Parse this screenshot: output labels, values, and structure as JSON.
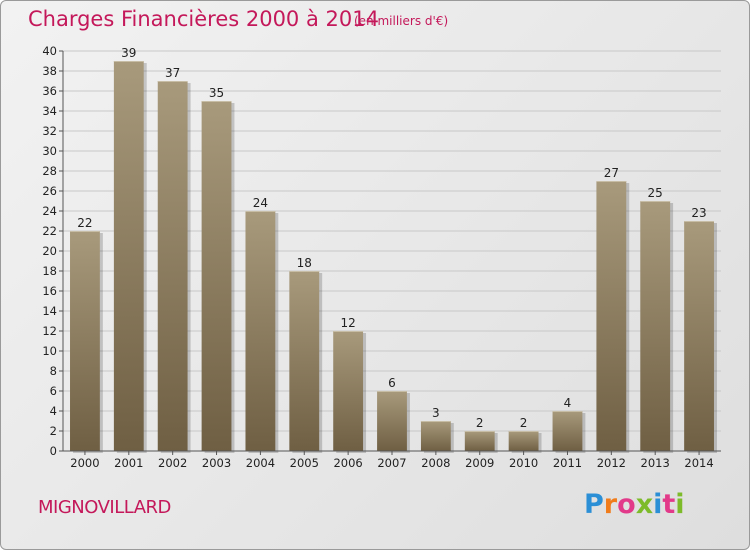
{
  "header": {
    "title": "Charges Financières 2000 à 2014",
    "subtitle": "(en milliers d'€)"
  },
  "footer": {
    "commune": "MIGNOVILLARD",
    "logo_text": "Proxiti",
    "logo_colors": [
      "#2b8fd6",
      "#f07c1b",
      "#e23a8a",
      "#7dbb2a",
      "#2b8fd6",
      "#e23a8a",
      "#7dbb2a"
    ]
  },
  "colors": {
    "bar_top": "#a89a7c",
    "bar_bottom": "#6f5f43",
    "grid": "#c8c8c8",
    "axis": "#555555"
  },
  "chart_data": {
    "type": "bar",
    "title": "Charges Financières 2000 à 2014",
    "xlabel": "",
    "ylabel": "",
    "categories": [
      "2000",
      "2001",
      "2002",
      "2003",
      "2004",
      "2005",
      "2006",
      "2007",
      "2008",
      "2009",
      "2010",
      "2011",
      "2012",
      "2013",
      "2014"
    ],
    "values": [
      22,
      39,
      37,
      35,
      24,
      18,
      12,
      6,
      3,
      2,
      2,
      4,
      27,
      25,
      23
    ],
    "ylim": [
      0,
      40
    ],
    "y_ticks": [
      0,
      2,
      4,
      6,
      8,
      10,
      12,
      14,
      16,
      18,
      20,
      22,
      24,
      26,
      28,
      30,
      32,
      34,
      36,
      38,
      40
    ],
    "grid": true,
    "legend": "none"
  }
}
